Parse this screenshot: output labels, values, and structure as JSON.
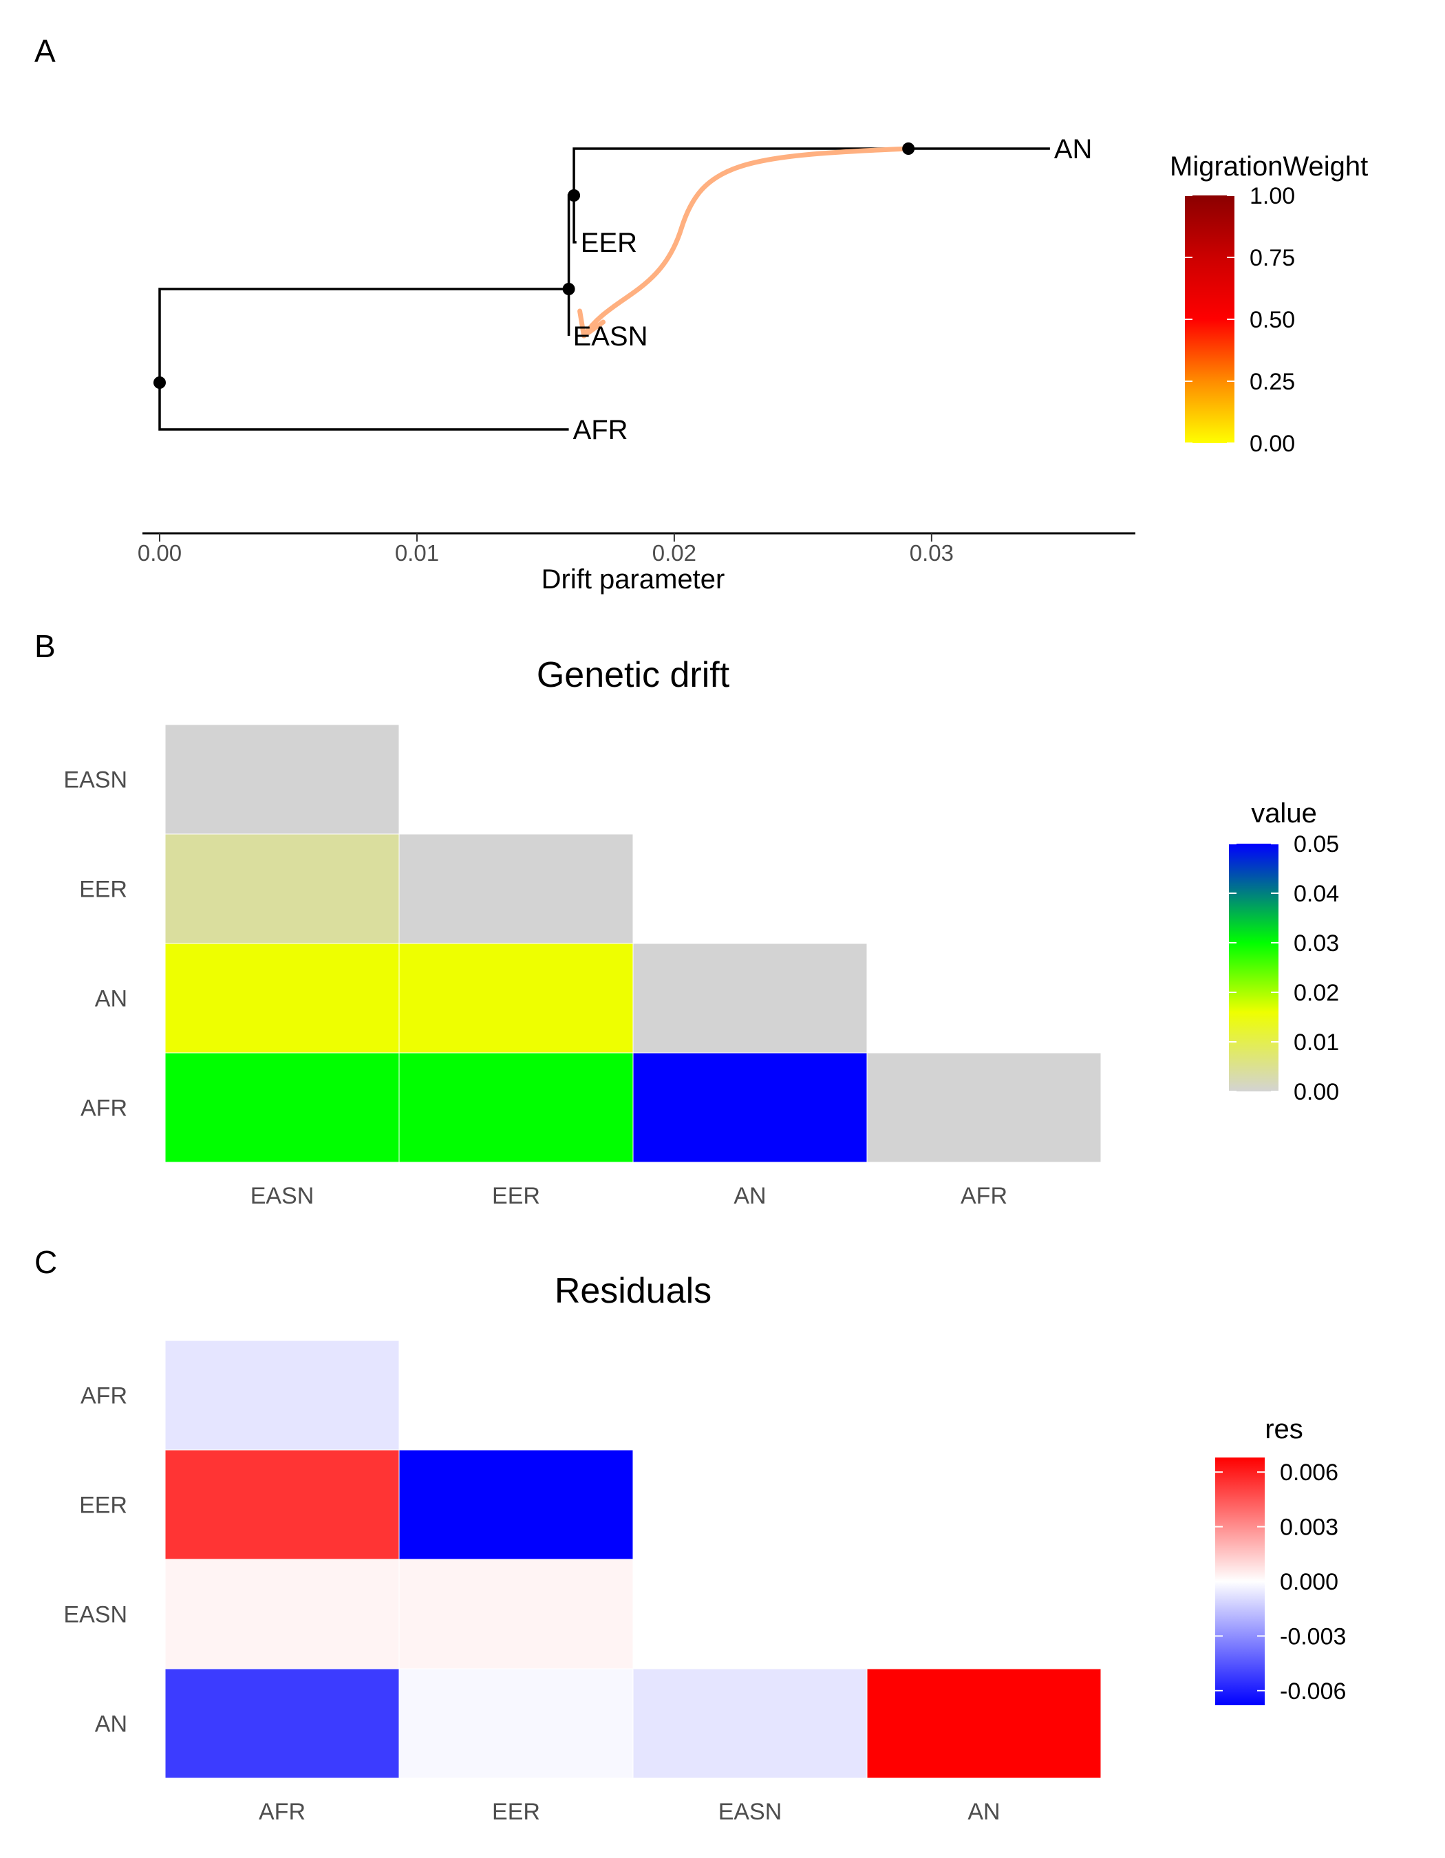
{
  "panels": {
    "a": {
      "letter": "A"
    },
    "b": {
      "letter": "B"
    },
    "c": {
      "letter": "C"
    }
  },
  "chart_data": [
    {
      "panel": "A",
      "type": "tree",
      "xlabel": "Drift parameter",
      "xlim": [
        0,
        0.038
      ],
      "ylim": [
        0,
        5
      ],
      "x_ticks": [
        {
          "value": 0.0,
          "label": "0.00"
        },
        {
          "value": 0.01,
          "label": "0.01"
        },
        {
          "value": 0.02,
          "label": "0.02"
        },
        {
          "value": 0.03,
          "label": "0.03"
        }
      ],
      "nodes": [
        {
          "id": "root",
          "x": 0.0,
          "y": 1.5,
          "tip": false
        },
        {
          "id": "n1",
          "x": 0.0159,
          "y": 2.5,
          "tip": false
        },
        {
          "id": "n2",
          "x": 0.0161,
          "y": 3.5,
          "tip": false
        },
        {
          "id": "an_node",
          "x": 0.0291,
          "y": 4.0,
          "tip": false
        },
        {
          "id": "AN",
          "x": 0.0346,
          "y": 4.0,
          "tip": true,
          "label": "AN"
        },
        {
          "id": "EER",
          "x": 0.0162,
          "y": 3.0,
          "tip": true,
          "label": "EER"
        },
        {
          "id": "EASN",
          "x": 0.0159,
          "y": 2.0,
          "tip": true,
          "label": "EASN"
        },
        {
          "id": "AFR",
          "x": 0.0159,
          "y": 1.0,
          "tip": true,
          "label": "AFR"
        }
      ],
      "edges": [
        {
          "from": "root",
          "to": "n1"
        },
        {
          "from": "root",
          "to": "AFR"
        },
        {
          "from": "n1",
          "to": "n2"
        },
        {
          "from": "n1",
          "to": "EASN"
        },
        {
          "from": "n2",
          "to": "an_node"
        },
        {
          "from": "n2",
          "to": "EER"
        },
        {
          "from": "an_node",
          "to": "AN"
        }
      ],
      "dots": [
        "root",
        "n1",
        "n2",
        "an_node"
      ],
      "migration": [
        {
          "from": "an_node",
          "to": "EASN",
          "weight": 0.15,
          "color": "#FFB080"
        }
      ],
      "legend": {
        "title": "MigrationWeight",
        "range": [
          0,
          1
        ],
        "ticks": [
          {
            "value": 0.0,
            "label": "0.00"
          },
          {
            "value": 0.25,
            "label": "0.25"
          },
          {
            "value": 0.5,
            "label": "0.50"
          },
          {
            "value": 0.75,
            "label": "0.75"
          },
          {
            "value": 1.0,
            "label": "1.00"
          }
        ],
        "colors": [
          "#FFFF00",
          "#FF8C00",
          "#FF0000",
          "#CC0000",
          "#8B0000"
        ]
      }
    },
    {
      "panel": "B",
      "type": "heatmap",
      "title": "Genetic drift",
      "x_categories": [
        "EASN",
        "EER",
        "AN",
        "AFR"
      ],
      "y_categories": [
        "EASN",
        "EER",
        "AN",
        "AFR"
      ],
      "cells": [
        {
          "x": "EASN",
          "y": "EASN",
          "value": 0.0
        },
        {
          "x": "EASN",
          "y": "EER",
          "value": 0.004
        },
        {
          "x": "EER",
          "y": "EER",
          "value": 0.0
        },
        {
          "x": "EASN",
          "y": "AN",
          "value": 0.016
        },
        {
          "x": "EER",
          "y": "AN",
          "value": 0.016
        },
        {
          "x": "AN",
          "y": "AN",
          "value": 0.0
        },
        {
          "x": "EASN",
          "y": "AFR",
          "value": 0.03
        },
        {
          "x": "EER",
          "y": "AFR",
          "value": 0.03
        },
        {
          "x": "AN",
          "y": "AFR",
          "value": 0.05
        },
        {
          "x": "AFR",
          "y": "AFR",
          "value": 0.0
        }
      ],
      "legend": {
        "title": "value",
        "range": [
          0,
          0.05
        ],
        "ticks": [
          {
            "value": 0.0,
            "label": "0.00"
          },
          {
            "value": 0.01,
            "label": "0.01"
          },
          {
            "value": 0.02,
            "label": "0.02"
          },
          {
            "value": 0.03,
            "label": "0.03"
          },
          {
            "value": 0.04,
            "label": "0.04"
          },
          {
            "value": 0.05,
            "label": "0.05"
          }
        ],
        "stops": [
          {
            "value": 0.0,
            "color": "#D3D3D3"
          },
          {
            "value": 0.016,
            "color": "#EEFF00"
          },
          {
            "value": 0.03,
            "color": "#00FF00"
          },
          {
            "value": 0.05,
            "color": "#0000FF"
          }
        ]
      }
    },
    {
      "panel": "C",
      "type": "heatmap",
      "title": "Residuals",
      "x_categories": [
        "AFR",
        "EER",
        "EASN",
        "AN"
      ],
      "y_categories": [
        "AFR",
        "EER",
        "EASN",
        "AN"
      ],
      "cells": [
        {
          "x": "AFR",
          "y": "AFR",
          "value": -0.0007
        },
        {
          "x": "AFR",
          "y": "EER",
          "value": 0.0054
        },
        {
          "x": "EER",
          "y": "EER",
          "value": -0.0068
        },
        {
          "x": "AFR",
          "y": "EASN",
          "value": 0.0003
        },
        {
          "x": "EER",
          "y": "EASN",
          "value": 0.0003
        },
        {
          "x": "EASN",
          "y": "EASN",
          "value": 0.0
        },
        {
          "x": "AFR",
          "y": "AN",
          "value": -0.0052
        },
        {
          "x": "EER",
          "y": "AN",
          "value": -0.0002
        },
        {
          "x": "EASN",
          "y": "AN",
          "value": -0.0007
        },
        {
          "x": "AN",
          "y": "AN",
          "value": 0.0068
        }
      ],
      "legend": {
        "title": "res",
        "range": [
          -0.0068,
          0.0068
        ],
        "ticks": [
          {
            "value": 0.006,
            "label": "0.006"
          },
          {
            "value": 0.003,
            "label": "0.003"
          },
          {
            "value": 0.0,
            "label": "0.000"
          },
          {
            "value": -0.003,
            "label": "-0.003"
          },
          {
            "value": -0.006,
            "label": "-0.006"
          }
        ],
        "low": "#0000FF",
        "mid": "#FFFFFF",
        "high": "#FF0000"
      }
    }
  ]
}
